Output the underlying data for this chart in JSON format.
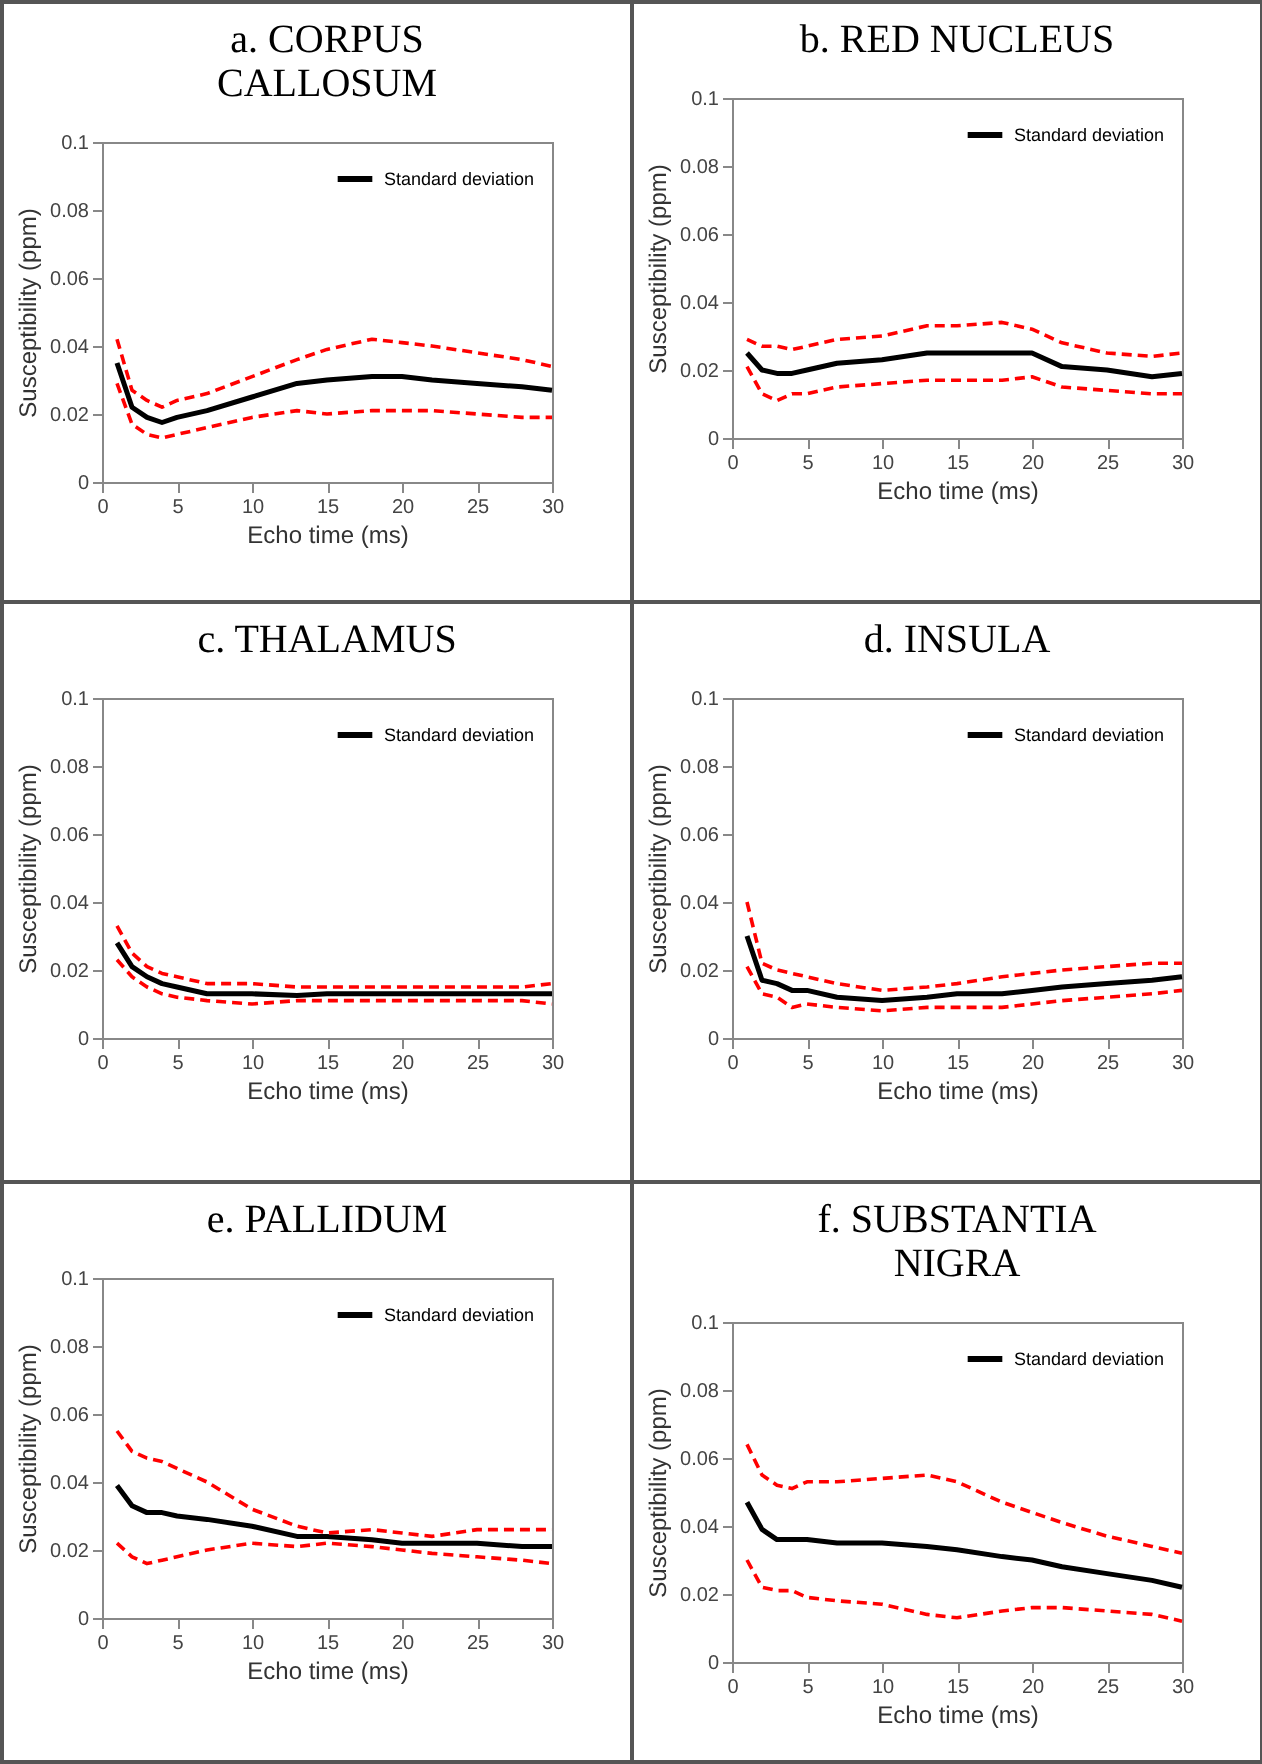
{
  "chart_data": [
    {
      "type": "line",
      "title": "a. CORPUS CALLOSUM",
      "xlabel": "Echo time (ms)",
      "ylabel": "Susceptibility (ppm)",
      "x": [
        1,
        2,
        3,
        4,
        5,
        7,
        10,
        13,
        15,
        18,
        20,
        22,
        25,
        28,
        30
      ],
      "xlim": [
        0,
        30
      ],
      "xticks": [
        0,
        5,
        10,
        15,
        20,
        25,
        30
      ],
      "ylim": [
        0,
        0.1
      ],
      "yticks": [
        0,
        0.02,
        0.04,
        0.06,
        0.08,
        0.1
      ],
      "legend": "top right",
      "series": [
        {
          "name": "Standard deviation",
          "color": "#000000",
          "line_style": "solid",
          "values": [
            0.035,
            0.022,
            0.019,
            0.0175,
            0.019,
            0.021,
            0.025,
            0.029,
            0.03,
            0.031,
            0.031,
            0.03,
            0.029,
            0.028,
            0.027
          ]
        },
        {
          "color": "#ff0000",
          "line_style": "dashed",
          "values": [
            0.042,
            0.027,
            0.024,
            0.022,
            0.024,
            0.026,
            0.031,
            0.036,
            0.039,
            0.042,
            0.041,
            0.04,
            0.038,
            0.036,
            0.034
          ]
        },
        {
          "color": "#ff0000",
          "line_style": "dashed",
          "values": [
            0.029,
            0.017,
            0.014,
            0.013,
            0.014,
            0.016,
            0.019,
            0.021,
            0.02,
            0.021,
            0.021,
            0.021,
            0.02,
            0.019,
            0.019
          ]
        }
      ]
    },
    {
      "type": "line",
      "title": "b. RED NUCLEUS",
      "xlabel": "Echo time (ms)",
      "ylabel": "Susceptibility (ppm)",
      "x": [
        1,
        2,
        3,
        4,
        5,
        7,
        10,
        13,
        15,
        18,
        20,
        22,
        25,
        28,
        30
      ],
      "xlim": [
        0,
        30
      ],
      "xticks": [
        0,
        5,
        10,
        15,
        20,
        25,
        30
      ],
      "ylim": [
        0,
        0.1
      ],
      "yticks": [
        0,
        0.02,
        0.04,
        0.06,
        0.08,
        0.1
      ],
      "legend": "top right",
      "series": [
        {
          "name": "Standard deviation",
          "color": "#000000",
          "line_style": "solid",
          "values": [
            0.025,
            0.02,
            0.019,
            0.019,
            0.02,
            0.022,
            0.023,
            0.025,
            0.025,
            0.025,
            0.025,
            0.021,
            0.02,
            0.018,
            0.019
          ]
        },
        {
          "color": "#ff0000",
          "line_style": "dashed",
          "values": [
            0.029,
            0.027,
            0.027,
            0.026,
            0.027,
            0.029,
            0.03,
            0.033,
            0.033,
            0.034,
            0.032,
            0.028,
            0.025,
            0.024,
            0.025
          ]
        },
        {
          "color": "#ff0000",
          "line_style": "dashed",
          "values": [
            0.021,
            0.013,
            0.011,
            0.013,
            0.013,
            0.015,
            0.016,
            0.017,
            0.017,
            0.017,
            0.018,
            0.015,
            0.014,
            0.013,
            0.013
          ]
        }
      ]
    },
    {
      "type": "line",
      "title": "c. THALAMUS",
      "xlabel": "Echo time (ms)",
      "ylabel": "Susceptibility (ppm)",
      "x": [
        1,
        2,
        3,
        4,
        5,
        7,
        10,
        13,
        15,
        18,
        20,
        22,
        25,
        28,
        30
      ],
      "xlim": [
        0,
        30
      ],
      "xticks": [
        0,
        5,
        10,
        15,
        20,
        25,
        30
      ],
      "ylim": [
        0,
        0.1
      ],
      "yticks": [
        0,
        0.02,
        0.04,
        0.06,
        0.08,
        0.1
      ],
      "legend": "top right",
      "series": [
        {
          "name": "Standard deviation",
          "color": "#000000",
          "line_style": "solid",
          "values": [
            0.028,
            0.021,
            0.018,
            0.016,
            0.015,
            0.013,
            0.013,
            0.0125,
            0.013,
            0.013,
            0.013,
            0.013,
            0.013,
            0.013,
            0.013
          ]
        },
        {
          "color": "#ff0000",
          "line_style": "dashed",
          "values": [
            0.033,
            0.025,
            0.021,
            0.019,
            0.018,
            0.016,
            0.016,
            0.015,
            0.015,
            0.015,
            0.015,
            0.015,
            0.015,
            0.015,
            0.016
          ]
        },
        {
          "color": "#ff0000",
          "line_style": "dashed",
          "values": [
            0.023,
            0.018,
            0.015,
            0.013,
            0.012,
            0.011,
            0.01,
            0.011,
            0.011,
            0.011,
            0.011,
            0.011,
            0.011,
            0.011,
            0.01
          ]
        }
      ]
    },
    {
      "type": "line",
      "title": "d. INSULA",
      "xlabel": "Echo time (ms)",
      "ylabel": "Susceptibility (ppm)",
      "x": [
        1,
        2,
        3,
        4,
        5,
        7,
        10,
        13,
        15,
        18,
        20,
        22,
        25,
        28,
        30
      ],
      "xlim": [
        0,
        30
      ],
      "xticks": [
        0,
        5,
        10,
        15,
        20,
        25,
        30
      ],
      "ylim": [
        0,
        0.1
      ],
      "yticks": [
        0,
        0.02,
        0.04,
        0.06,
        0.08,
        0.1
      ],
      "legend": "top right",
      "series": [
        {
          "name": "Standard deviation",
          "color": "#000000",
          "line_style": "solid",
          "values": [
            0.03,
            0.017,
            0.016,
            0.014,
            0.014,
            0.012,
            0.011,
            0.012,
            0.013,
            0.013,
            0.014,
            0.015,
            0.016,
            0.017,
            0.018
          ]
        },
        {
          "color": "#ff0000",
          "line_style": "dashed",
          "values": [
            0.04,
            0.022,
            0.02,
            0.019,
            0.018,
            0.016,
            0.014,
            0.015,
            0.016,
            0.018,
            0.019,
            0.02,
            0.021,
            0.022,
            0.022
          ]
        },
        {
          "color": "#ff0000",
          "line_style": "dashed",
          "values": [
            0.021,
            0.013,
            0.012,
            0.009,
            0.01,
            0.009,
            0.008,
            0.009,
            0.009,
            0.009,
            0.01,
            0.011,
            0.012,
            0.013,
            0.014
          ]
        }
      ]
    },
    {
      "type": "line",
      "title": "e. PALLIDUM",
      "xlabel": "Echo time (ms)",
      "ylabel": "Susceptibility (ppm)",
      "x": [
        1,
        2,
        3,
        4,
        5,
        7,
        10,
        13,
        15,
        18,
        20,
        22,
        25,
        28,
        30
      ],
      "xlim": [
        0,
        30
      ],
      "xticks": [
        0,
        5,
        10,
        15,
        20,
        25,
        30
      ],
      "ylim": [
        0,
        0.1
      ],
      "yticks": [
        0,
        0.02,
        0.04,
        0.06,
        0.08,
        0.1
      ],
      "legend": "top right",
      "series": [
        {
          "name": "Standard deviation",
          "color": "#000000",
          "line_style": "solid",
          "values": [
            0.039,
            0.033,
            0.031,
            0.031,
            0.03,
            0.029,
            0.027,
            0.024,
            0.024,
            0.023,
            0.022,
            0.022,
            0.022,
            0.021,
            0.021
          ]
        },
        {
          "color": "#ff0000",
          "line_style": "dashed",
          "values": [
            0.055,
            0.049,
            0.047,
            0.046,
            0.044,
            0.04,
            0.032,
            0.027,
            0.025,
            0.026,
            0.025,
            0.024,
            0.026,
            0.026,
            0.026
          ]
        },
        {
          "color": "#ff0000",
          "line_style": "dashed",
          "values": [
            0.022,
            0.018,
            0.016,
            0.017,
            0.018,
            0.02,
            0.022,
            0.021,
            0.022,
            0.021,
            0.02,
            0.019,
            0.018,
            0.017,
            0.016
          ]
        }
      ]
    },
    {
      "type": "line",
      "title": "f. SUBSTANTIA NIGRA",
      "xlabel": "Echo time (ms)",
      "ylabel": "Susceptibility (ppm)",
      "x": [
        1,
        2,
        3,
        4,
        5,
        7,
        10,
        13,
        15,
        18,
        20,
        22,
        25,
        28,
        30
      ],
      "xlim": [
        0,
        30
      ],
      "xticks": [
        0,
        5,
        10,
        15,
        20,
        25,
        30
      ],
      "ylim": [
        0,
        0.1
      ],
      "yticks": [
        0,
        0.02,
        0.04,
        0.06,
        0.08,
        0.1
      ],
      "legend": "top right",
      "series": [
        {
          "name": "Standard deviation",
          "color": "#000000",
          "line_style": "solid",
          "values": [
            0.047,
            0.039,
            0.036,
            0.036,
            0.036,
            0.035,
            0.035,
            0.034,
            0.033,
            0.031,
            0.03,
            0.028,
            0.026,
            0.024,
            0.022
          ]
        },
        {
          "color": "#ff0000",
          "line_style": "dashed",
          "values": [
            0.064,
            0.055,
            0.052,
            0.051,
            0.053,
            0.053,
            0.054,
            0.055,
            0.053,
            0.047,
            0.044,
            0.041,
            0.037,
            0.034,
            0.032
          ]
        },
        {
          "color": "#ff0000",
          "line_style": "dashed",
          "values": [
            0.03,
            0.022,
            0.021,
            0.021,
            0.019,
            0.018,
            0.017,
            0.014,
            0.013,
            0.015,
            0.016,
            0.016,
            0.015,
            0.014,
            0.012
          ]
        }
      ]
    }
  ]
}
